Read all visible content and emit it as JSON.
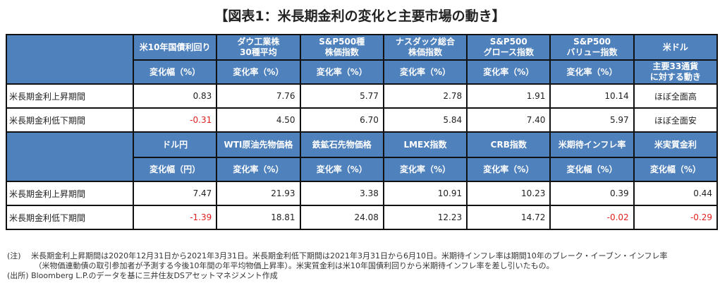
{
  "title": "【図表1：米長期金利の変化と主要市場の動き】",
  "colors": {
    "header_bg": "#4f81bd",
    "negative": "#e02020"
  },
  "table1": {
    "headers": [
      "米10年国債利回り",
      "ダウ工業株\n30種平均",
      "S&P500種\n株価指数",
      "ナスダック総合\n株価指数",
      "S&P500\nグロース指数",
      "S&P500\nバリュー指数",
      "米ドル"
    ],
    "units": [
      "変化幅（%）",
      "変化率（%）",
      "変化率（%）",
      "変化率（%）",
      "変化率（%）",
      "変化率（%）",
      "主要33通貨\nに対する動き"
    ],
    "rows": [
      {
        "label": "米長期金利上昇期間",
        "values": [
          "0.83",
          "7.76",
          "5.77",
          "2.78",
          "1.91",
          "10.14",
          "ほぼ全面高"
        ]
      },
      {
        "label": "米長期金利低下期間",
        "values": [
          "-0.31",
          "4.50",
          "6.70",
          "5.84",
          "7.40",
          "5.97",
          "ほぼ全面安"
        ]
      }
    ]
  },
  "table2": {
    "headers": [
      "ドル円",
      "WTI原油先物価格",
      "鉄鉱石先物価格",
      "LMEX指数",
      "CRB指数",
      "米期待インフレ率",
      "米実質金利"
    ],
    "units": [
      "変化幅（円）",
      "変化率（%）",
      "変化率（%）",
      "変化率（%）",
      "変化率（%）",
      "変化幅（%）",
      "変化幅（%）"
    ],
    "rows": [
      {
        "label": "米長期金利上昇期間",
        "values": [
          "7.47",
          "21.93",
          "3.38",
          "10.91",
          "10.23",
          "0.39",
          "0.44"
        ]
      },
      {
        "label": "米長期金利低下期間",
        "values": [
          "-1.39",
          "18.81",
          "24.08",
          "12.23",
          "14.72",
          "-0.02",
          "-0.29"
        ]
      }
    ]
  },
  "notes": {
    "line1": "(注)　 米長期金利上昇期間は2020年12月31日から2021年3月31日。米長期金利低下期間は2021年3月31日から6月10日。米期待インフレ率は期間10年のブレーク・イーブン・インフレ率",
    "line2": "　　　　（米物価連動債の取引参加者が予測する今後10年間の年平均物価上昇率）。米実質金利は米10年国債利回りから米期待インフレ率を差し引いたもの。",
    "line3": "(出所) Bloomberg L.P.のデータを基に三井住友DSアセットマネジメント作成"
  }
}
